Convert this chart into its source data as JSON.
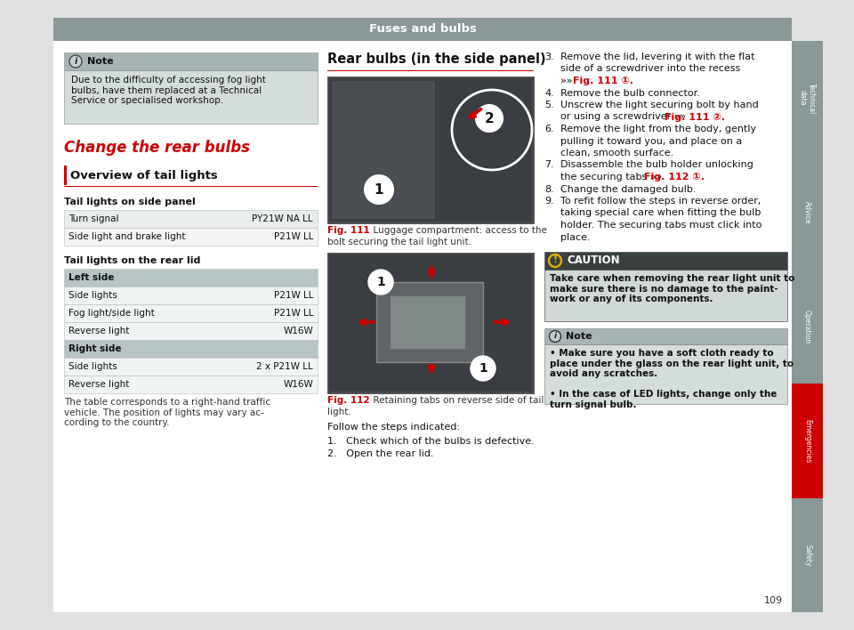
{
  "page_bg": "#e0e0e0",
  "content_bg": "#ffffff",
  "header_bg": "#8a9898",
  "header_text": "Fuses and bulbs",
  "header_text_color": "#ffffff",
  "sidebar_labels": [
    "Technical\ndata",
    "Advice",
    "Operation",
    "Emergencies",
    "Safety"
  ],
  "sidebar_colors": [
    "#8a9898",
    "#8a9898",
    "#8a9898",
    "#cc0000",
    "#8a9898"
  ],
  "note_header_bg": "#a8b4b4",
  "note_body_bg": "#d4dcdc",
  "note_body_text": "Due to the difficulty of accessing fog light\nbulbs, have them replaced at a Technical\nService or specialised workshop.",
  "section_title": "Change the rear bulbs",
  "section_title_color": "#cc0000",
  "subsection_title": "Overview of tail lights",
  "table1_title": "Tail lights on side panel",
  "table1_rows": [
    [
      "Turn signal",
      "PY21W NA LL"
    ],
    [
      "Side light and brake light",
      "P21W LL"
    ]
  ],
  "table2_title": "Tail lights on the rear lid",
  "table2_left_header": "Left side",
  "table2_left_rows": [
    [
      "Side lights",
      "P21W LL"
    ],
    [
      "Fog light/side light",
      "P21W LL"
    ],
    [
      "Reverse light",
      "W16W"
    ]
  ],
  "table2_right_header": "Right side",
  "table2_right_rows": [
    [
      "Side lights",
      "2 x P21W LL"
    ],
    [
      "Reverse light",
      "W16W"
    ]
  ],
  "footer_text": "The table corresponds to a right-hand traffic\nvehicle. The position of lights may vary ac-\ncording to the country.",
  "mid_title": "Rear bulbs (in the side panel)",
  "fig111_cap1": "Fig. 111   Luggage compartment: access to the",
  "fig111_cap2": "bolt securing the tail light unit.",
  "fig112_cap1": "Fig. 112   Retaining tabs on reverse side of tail",
  "fig112_cap2": "light.",
  "follow_text": "Follow the steps indicated:",
  "step1": "Check which of the bulbs is defective.",
  "step2": "Open the rear lid.",
  "steps_right": [
    [
      "3.",
      "Remove the lid, levering it with the flat"
    ],
    [
      "",
      "side of a screwdriver into the recess"
    ],
    [
      "",
      "»» Fig. 111 ①."
    ],
    [
      "4.",
      "Remove the bulb connector."
    ],
    [
      "5.",
      "Unscrew the light securing bolt by hand"
    ],
    [
      "",
      "or using a screwdriver »» Fig. 111 ②."
    ],
    [
      "6.",
      "Remove the light from the body, gently"
    ],
    [
      "",
      "pulling it toward you, and place on a"
    ],
    [
      "",
      "clean, smooth surface."
    ],
    [
      "7.",
      "Disassemble the bulb holder unlocking"
    ],
    [
      "",
      "the securing tabs »» Fig. 112 ①."
    ],
    [
      "8.",
      "Change the damaged bulb."
    ],
    [
      "9.",
      "To refit follow the steps in reverse order,"
    ],
    [
      "",
      "taking special care when fitting the bulb"
    ],
    [
      "",
      "holder. The securing tabs must click into"
    ],
    [
      "",
      "place."
    ]
  ],
  "caution_header": "CAUTION",
  "caution_body": "Take care when removing the rear light unit to\nmake sure there is no damage to the paint-\nwork or any of its components.",
  "note2_body": "• Make sure you have a soft cloth ready to\nplace under the glass on the rear light unit, to\navoid any scratches.\n\n• In the case of LED lights, change only the\nturn signal bulb.",
  "page_number": "109",
  "red": "#cc0000",
  "table_hdr_bg": "#b8c4c4",
  "table_row_bg1": "#e8ecec",
  "table_row_bg2": "#f4f4f4"
}
